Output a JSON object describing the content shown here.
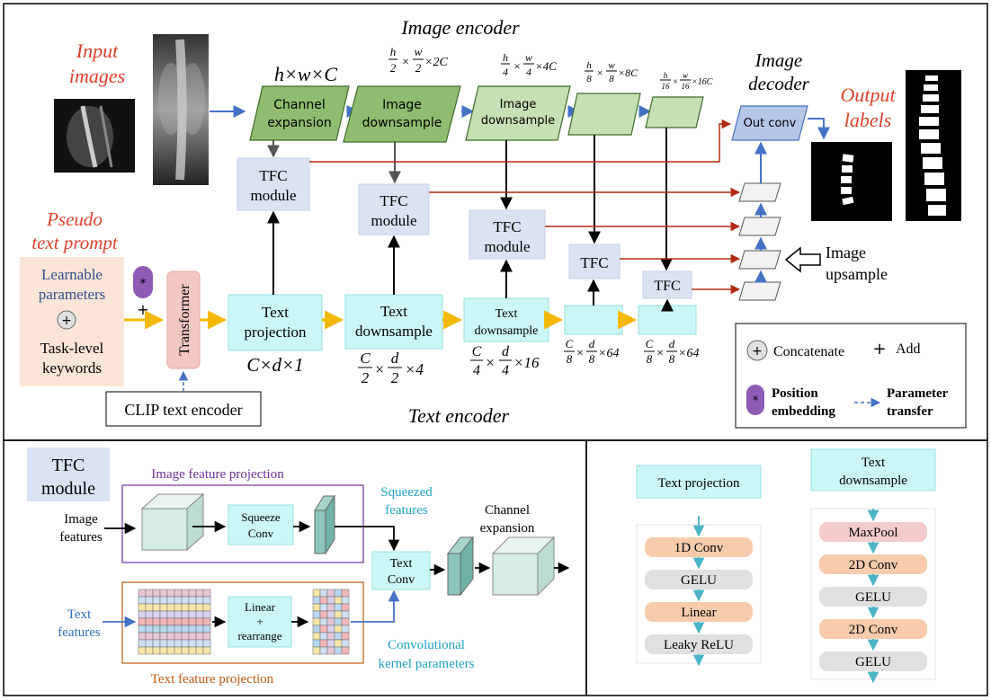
{
  "main": {
    "image_encoder_title": "Image encoder",
    "text_encoder_title": "Text encoder",
    "input_images": [
      "Input",
      "images"
    ],
    "pseudo_text_prompt": [
      "Pseudo",
      "text prompt"
    ],
    "prompt_box": {
      "line1": "Learnable",
      "line2": "parameters",
      "line3": "Task-level",
      "line4": "keywords"
    },
    "transformer": "Transformer",
    "clip": "CLIP text encoder",
    "channel_expansion": [
      "Channel",
      "expansion"
    ],
    "image_downsample_1": [
      "Image",
      "downsample"
    ],
    "image_downsample_2": [
      "Image",
      "downsample"
    ],
    "dim_hwc": "h×w×C",
    "dim_2": "×2C",
    "dim_4": "×4C",
    "dim_8": "×8C",
    "dim_16": "×16C",
    "tfc_module": [
      "TFC",
      "module"
    ],
    "tfc": "TFC",
    "text_projection": [
      "Text",
      "projection"
    ],
    "text_downsample_1": [
      "Text",
      "downsample"
    ],
    "text_downsample_2": [
      "Text",
      "downsample"
    ],
    "dim_cd1": "C×d×1",
    "dim_x4": "×4",
    "dim_x16": "×16",
    "dim_x64": "×64",
    "image_decoder": [
      "Image",
      "decoder"
    ],
    "out_conv": "Out conv",
    "output_labels": [
      "Output",
      "labels"
    ],
    "image_upsample": [
      "Image",
      "upsample"
    ],
    "legend": {
      "concatenate": "Concatenate",
      "add": "Add",
      "position": [
        "Position",
        "embedding"
      ],
      "param": [
        "Parameter",
        "transfer"
      ]
    }
  },
  "tfc_panel": {
    "title": [
      "TFC",
      "module"
    ],
    "image_feature_projection": "Image feature projection",
    "image_features": [
      "Image",
      "features"
    ],
    "squeeze_conv": [
      "Squeeze",
      "Conv"
    ],
    "squeezed_features": [
      "Squeezed",
      "features"
    ],
    "channel_expansion": [
      "Channel",
      "expansion"
    ],
    "text_conv": [
      "Text",
      "Conv"
    ],
    "text_features": [
      "Text",
      "features"
    ],
    "linear_rearrange": [
      "Linear",
      "+",
      "rearrange"
    ],
    "text_feature_projection": "Text feature projection",
    "kernel_params": [
      "Convolutional",
      "kernel parameters"
    ]
  },
  "detail_panel": {
    "text_projection": "Text projection",
    "text_downsample": [
      "Text",
      "downsample"
    ],
    "proj_layers": [
      "1D Conv",
      "GELU",
      "Linear",
      "Leaky ReLU"
    ],
    "down_layers": [
      "MaxPool",
      "2D Conv",
      "GELU",
      "2D Conv",
      "GELU"
    ]
  },
  "colors": {
    "green_dark": "#8fbc6e",
    "green_light": "#c5e0b4",
    "tfc_box": "#dae3f3",
    "cyan": "#ccf7f7",
    "red_text": "#e0402a",
    "blue_text": "#4472c4",
    "yellow_arrow": "#f5c242",
    "red_arrow": "#b02b10",
    "blue_arrow": "#4472c4"
  }
}
